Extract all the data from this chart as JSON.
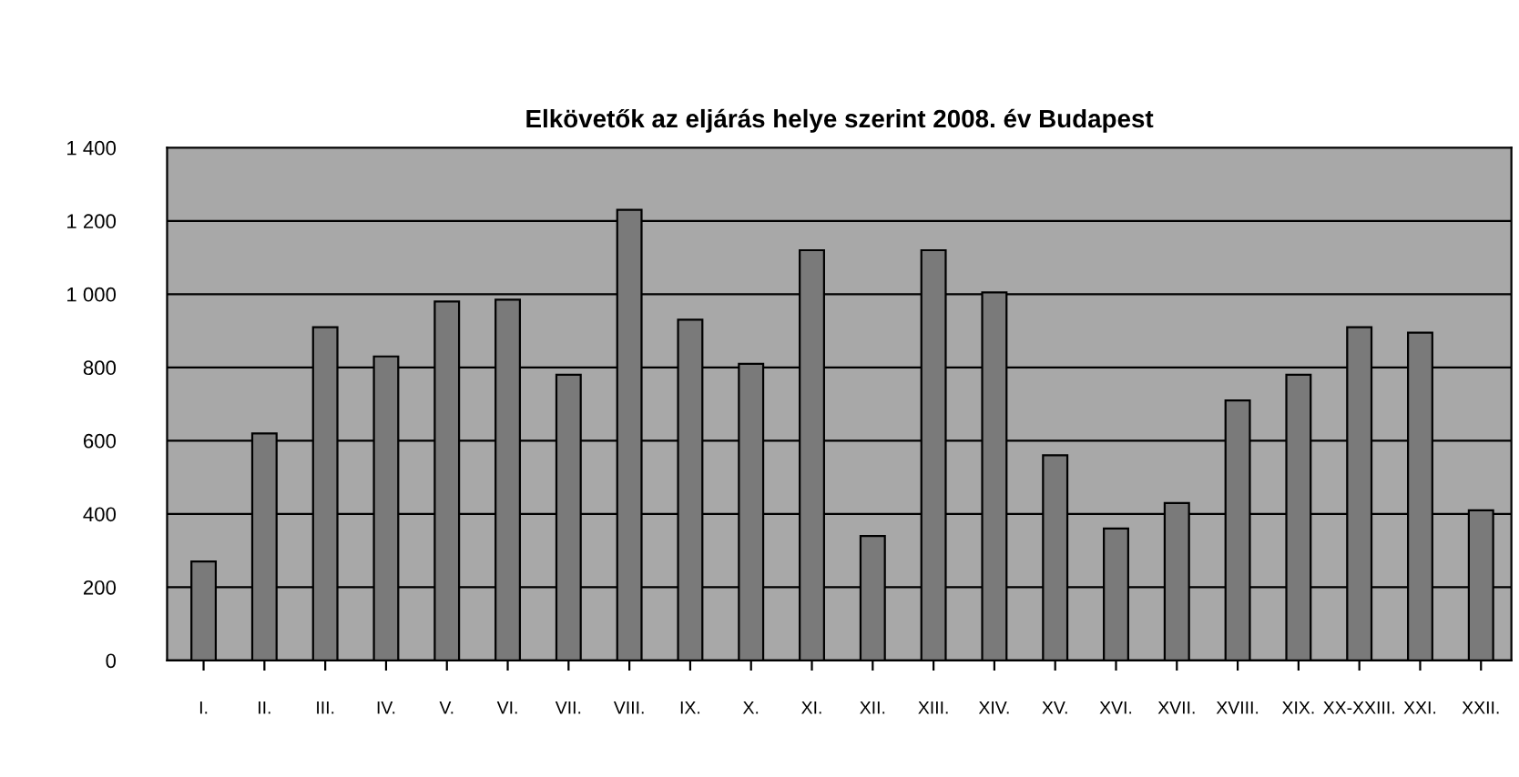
{
  "chart_data": {
    "type": "bar",
    "title": "Elkövetők az eljárás helye szerint 2008. év Budapest",
    "categories": [
      "I.",
      "II.",
      "III.",
      "IV.",
      "V.",
      "VI.",
      "VII.",
      "VIII.",
      "IX.",
      "X.",
      "XI.",
      "XII.",
      "XIII.",
      "XIV.",
      "XV.",
      "XVI.",
      "XVII.",
      "XVIII.",
      "XIX.",
      "XX-XXIII.",
      "XXI.",
      "XXII."
    ],
    "values": [
      270,
      620,
      910,
      830,
      980,
      985,
      780,
      1230,
      930,
      810,
      1120,
      340,
      1120,
      1005,
      560,
      360,
      430,
      710,
      780,
      910,
      895,
      410
    ],
    "color": "#7a7a7a",
    "ylim": [
      0,
      1400
    ],
    "yticks": [
      0,
      200,
      400,
      600,
      800,
      {
        "value": 1000,
        "label": "1 000"
      },
      {
        "value": 1200,
        "label": "1 200"
      },
      {
        "value": 1400,
        "label": "1 400"
      }
    ],
    "grid": "y"
  }
}
